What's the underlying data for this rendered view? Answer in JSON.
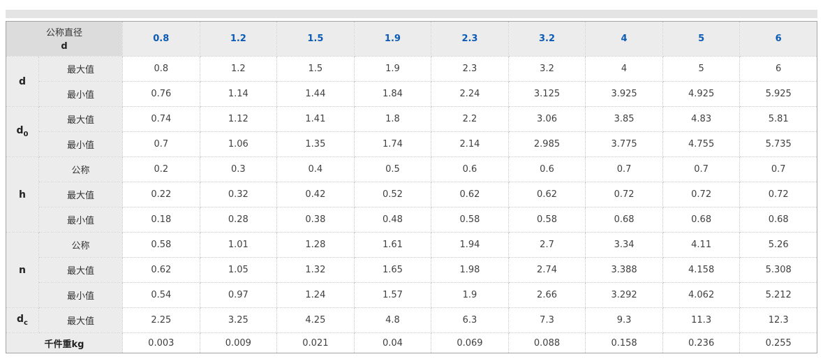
{
  "colors": {
    "header_value_blue": "#0b5bb5",
    "topbar_gray": "#e4e4e4"
  },
  "table": {
    "corner": {
      "line1": "公称直径",
      "line2": "d"
    },
    "col_headers": [
      "0.8",
      "1.2",
      "1.5",
      "1.9",
      "2.3",
      "3.2",
      "4",
      "5",
      "6"
    ],
    "groups": [
      {
        "symbol": "d",
        "subscript": "",
        "rows": [
          {
            "label": "最大值",
            "values": [
              "0.8",
              "1.2",
              "1.5",
              "1.9",
              "2.3",
              "3.2",
              "4",
              "5",
              "6"
            ]
          },
          {
            "label": "最小值",
            "values": [
              "0.76",
              "1.14",
              "1.44",
              "1.84",
              "2.24",
              "3.125",
              "3.925",
              "4.925",
              "5.925"
            ]
          }
        ]
      },
      {
        "symbol": "d",
        "subscript": "0",
        "rows": [
          {
            "label": "最大值",
            "values": [
              "0.74",
              "1.12",
              "1.41",
              "1.8",
              "2.2",
              "3.06",
              "3.85",
              "4.83",
              "5.81"
            ]
          },
          {
            "label": "最小值",
            "values": [
              "0.7",
              "1.06",
              "1.35",
              "1.74",
              "2.14",
              "2.985",
              "3.775",
              "4.755",
              "5.735"
            ]
          }
        ]
      },
      {
        "symbol": "h",
        "subscript": "",
        "rows": [
          {
            "label": "公称",
            "values": [
              "0.2",
              "0.3",
              "0.4",
              "0.5",
              "0.6",
              "0.6",
              "0.7",
              "0.7",
              "0.7"
            ]
          },
          {
            "label": "最大值",
            "values": [
              "0.22",
              "0.32",
              "0.42",
              "0.52",
              "0.62",
              "0.62",
              "0.72",
              "0.72",
              "0.72"
            ]
          },
          {
            "label": "最小值",
            "values": [
              "0.18",
              "0.28",
              "0.38",
              "0.48",
              "0.58",
              "0.58",
              "0.68",
              "0.68",
              "0.68"
            ]
          }
        ]
      },
      {
        "symbol": "n",
        "subscript": "",
        "rows": [
          {
            "label": "公称",
            "values": [
              "0.58",
              "1.01",
              "1.28",
              "1.61",
              "1.94",
              "2.7",
              "3.34",
              "4.11",
              "5.26"
            ]
          },
          {
            "label": "最大值",
            "values": [
              "0.62",
              "1.05",
              "1.32",
              "1.65",
              "1.98",
              "2.74",
              "3.388",
              "4.158",
              "5.308"
            ]
          },
          {
            "label": "最小值",
            "values": [
              "0.54",
              "0.97",
              "1.24",
              "1.57",
              "1.9",
              "2.66",
              "3.292",
              "4.062",
              "5.212"
            ]
          }
        ]
      },
      {
        "symbol": "d",
        "subscript": "c",
        "rows": [
          {
            "label": "最大值",
            "values": [
              "2.25",
              "3.25",
              "4.25",
              "4.8",
              "6.3",
              "7.3",
              "9.3",
              "11.3",
              "12.3"
            ]
          }
        ]
      }
    ],
    "footer": {
      "label": "千件重kg",
      "values": [
        "0.003",
        "0.009",
        "0.021",
        "0.04",
        "0.069",
        "0.088",
        "0.158",
        "0.236",
        "0.255"
      ]
    }
  }
}
